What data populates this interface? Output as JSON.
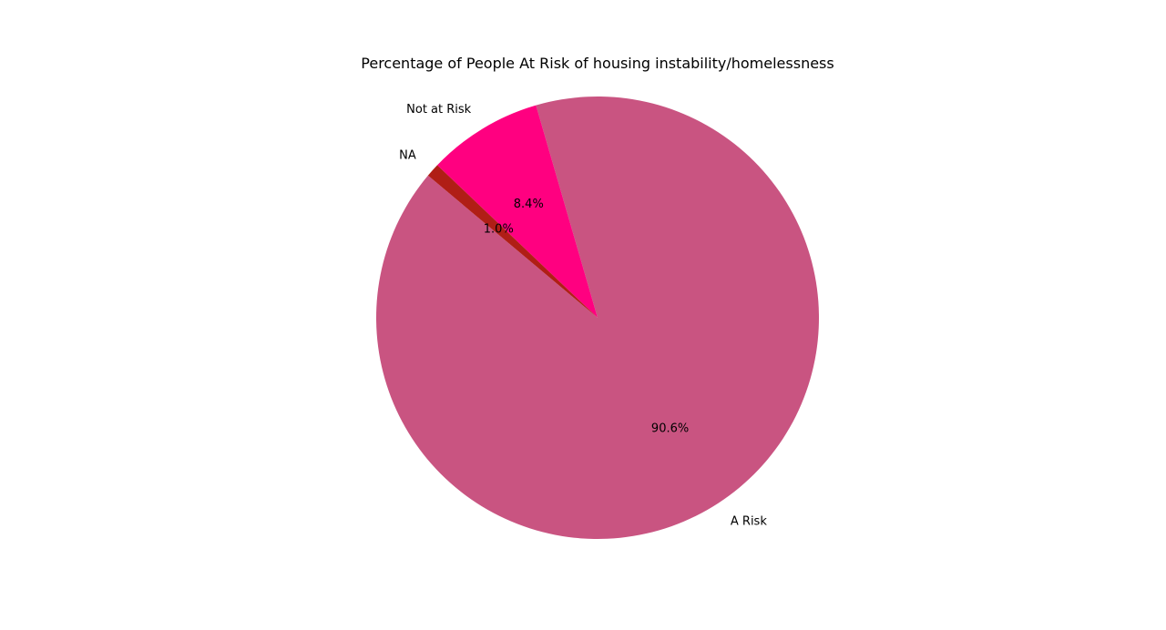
{
  "chart_data": {
    "type": "pie",
    "title": "Percentage of People At Risk of housing instability/homelessness",
    "categories": [
      "A Risk",
      "Not at Risk",
      "NA"
    ],
    "values": [
      90.6,
      8.4,
      1.0
    ],
    "labels": [
      "90.6%",
      "8.4%",
      "1.0%"
    ],
    "colors": [
      "#c95481",
      "#ff0080",
      "#b01e16"
    ],
    "start_angle_deg": 140,
    "direction": "counterclockwise",
    "legend": "none"
  }
}
